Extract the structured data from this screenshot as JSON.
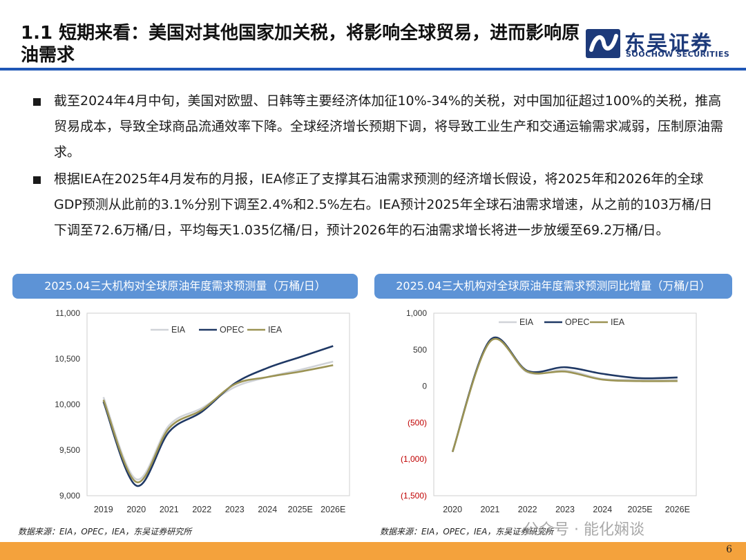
{
  "header": {
    "title": "1.1 短期来看：美国对其他国家加关税，将影响全球贸易，进而影响原油需求",
    "brand_name": "东吴证券",
    "brand_sub": "SOOCHOW SECURITIES"
  },
  "bullets": [
    "截至2024年4月中旬，美国对欧盟、日韩等主要经济体加征10%-34%的关税，对中国加征超过100%的关税，推高贸易成本，导致全球商品流通效率下降。全球经济增长预期下调，将导致工业生产和交通运输需求减弱，压制原油需求。",
    "根据IEA在2025年4月发布的月报，IEA修正了支撑其石油需求预测的经济增长假设，将2025年和2026年的全球GDP预测从此前的3.1%分别下调至2.4%和2.5%左右。IEA预计2025年全球石油需求增速，从之前的103万桶/日下调至72.6万桶/日，平均每天1.035亿桶/日，预计2026年的石油需求增长将进一步放缓至69.2万桶/日。"
  ],
  "colors": {
    "accent_blue": "#1f57b6",
    "header_blue": "#5d93d6",
    "bar_orange": "#f4a23c",
    "eia": "#d0d3d8",
    "opec": "#1f3864",
    "iea": "#9b9354",
    "negative": "#c00000"
  },
  "chart_data": [
    {
      "type": "line",
      "title": "2025.04三大机构对全球原油年度需求预测量（万桶/日）",
      "categories": [
        "2019",
        "2020",
        "2021",
        "2022",
        "2023",
        "2024",
        "2025E",
        "2026E"
      ],
      "ylim": [
        9000,
        11000
      ],
      "yticks": [
        "9,000",
        "9,500",
        "10,000",
        "10,500",
        "11,000"
      ],
      "ytick_values": [
        9000,
        9500,
        10000,
        10500,
        11000
      ],
      "legend_position": "top-left",
      "series": [
        {
          "name": "EIA",
          "color": "#d0d3d8",
          "values": [
            10080,
            9180,
            9770,
            9960,
            10190,
            10300,
            10380,
            10470
          ]
        },
        {
          "name": "OPEC",
          "color": "#1f3864",
          "values": [
            10030,
            9110,
            9700,
            9920,
            10230,
            10400,
            10520,
            10640
          ]
        },
        {
          "name": "IEA",
          "color": "#9b9354",
          "values": [
            10050,
            9150,
            9740,
            9940,
            10220,
            10300,
            10360,
            10430
          ]
        }
      ],
      "source": "数据来源：EIA，OPEC，IEA，东吴证券研究所"
    },
    {
      "type": "line",
      "title": "2025.04三大机构对全球原油年度需求预测同比增量（万桶/日）",
      "categories": [
        "2020",
        "2021",
        "2022",
        "2023",
        "2024",
        "2025E",
        "2026E"
      ],
      "ylim": [
        -1500,
        1000
      ],
      "yticks": [
        "(1,500)",
        "(1,000)",
        "(500)",
        "0",
        "500",
        "1,000"
      ],
      "ytick_values": [
        -1500,
        -1000,
        -500,
        0,
        500,
        1000
      ],
      "legend_position": "top-right",
      "series": [
        {
          "name": "EIA",
          "color": "#d0d3d8",
          "values": [
            -900,
            620,
            190,
            220,
            100,
            90,
            90
          ]
        },
        {
          "name": "OPEC",
          "color": "#1f3864",
          "values": [
            -900,
            630,
            210,
            260,
            170,
            110,
            120
          ]
        },
        {
          "name": "IEA",
          "color": "#9b9354",
          "values": [
            -900,
            610,
            200,
            200,
            90,
            70,
            70
          ]
        }
      ],
      "source": "数据来源：EIA，OPEC，IEA，东吴证券研究所"
    }
  ],
  "footer": {
    "page_number": "6",
    "watermark": "公众号 · 能化娴谈"
  }
}
